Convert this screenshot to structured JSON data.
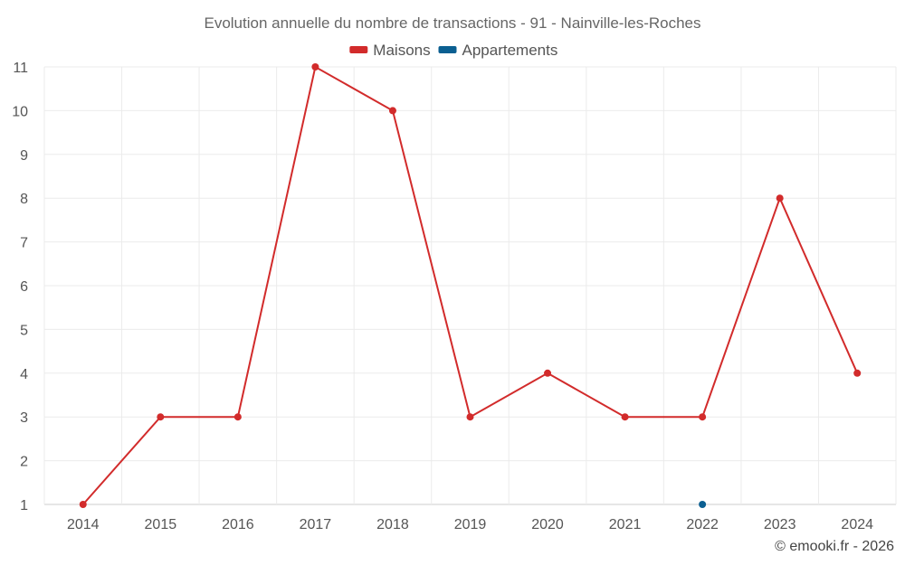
{
  "chart_data": {
    "type": "line",
    "title": "Evolution annuelle du nombre de transactions - 91 - Nainville-les-Roches",
    "xlabel": "",
    "ylabel": "",
    "x": [
      "2014",
      "2015",
      "2016",
      "2017",
      "2018",
      "2019",
      "2020",
      "2021",
      "2022",
      "2023",
      "2024"
    ],
    "ylim": [
      1,
      11
    ],
    "yticks": [
      1,
      2,
      3,
      4,
      5,
      6,
      7,
      8,
      9,
      10,
      11
    ],
    "grid": true,
    "legend_position": "top-center",
    "series": [
      {
        "name": "Maisons",
        "color": "#d22b2b",
        "values": [
          1,
          3,
          3,
          11,
          10,
          3,
          4,
          3,
          3,
          8,
          4
        ]
      },
      {
        "name": "Appartements",
        "color": "#0b5f91",
        "values": [
          null,
          null,
          null,
          null,
          null,
          null,
          null,
          null,
          1,
          null,
          null
        ]
      }
    ]
  },
  "credit": "© emooki.fr - 2026"
}
